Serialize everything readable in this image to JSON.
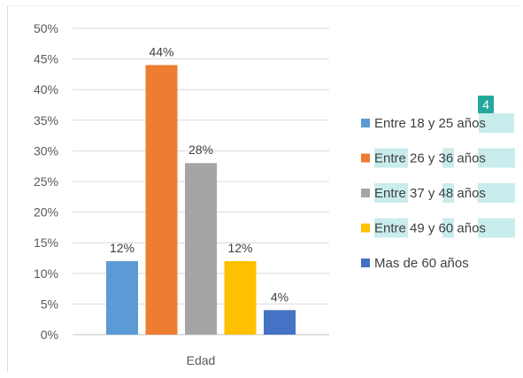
{
  "chart_data": {
    "type": "bar",
    "categories": [
      "Edad"
    ],
    "xlabel": "",
    "ylabel": "",
    "title": "",
    "ylim": [
      0,
      50
    ],
    "yticks": [
      "0%",
      "5%",
      "10%",
      "15%",
      "20%",
      "25%",
      "30%",
      "35%",
      "40%",
      "45%",
      "50%"
    ],
    "grid": true,
    "legend_position": "right",
    "series": [
      {
        "name": "Entre 18 y 25 años",
        "values": [
          12
        ],
        "label": "12%",
        "color": "#5b9bd5"
      },
      {
        "name": "Entre 26 y 36 años",
        "values": [
          44
        ],
        "label": "44%",
        "color": "#ed7d31"
      },
      {
        "name": "Entre 37 y 48 años",
        "values": [
          28
        ],
        "label": "28%",
        "color": "#a5a5a5"
      },
      {
        "name": "Entre 49 y 60 años",
        "values": [
          12
        ],
        "label": "12%",
        "color": "#ffc000"
      },
      {
        "name": "Mas de 60 años",
        "values": [
          4
        ],
        "label": "4%",
        "color": "#4472c4"
      }
    ]
  },
  "annotation": {
    "badge_text": "4",
    "badge_color": "#25a89c",
    "highlight_color": "#c9ecec"
  }
}
